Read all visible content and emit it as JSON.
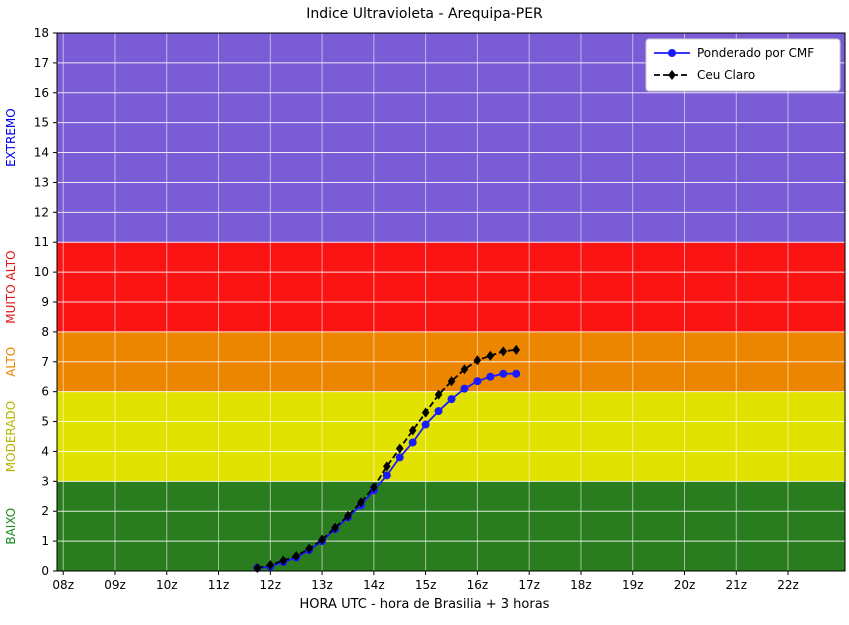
{
  "chart_data": {
    "type": "line",
    "title": "Indice Ultravioleta - Arequipa-PER",
    "xlabel": "HORA UTC - hora de Brasilia + 3 horas",
    "ylabel": "",
    "xlim": [
      7.88,
      23.1
    ],
    "ylim": [
      0,
      18
    ],
    "grid": true,
    "legend_position": "top-right",
    "x_ticks": [
      {
        "value": 8,
        "label": "08z"
      },
      {
        "value": 9,
        "label": "09z"
      },
      {
        "value": 10,
        "label": "10z"
      },
      {
        "value": 11,
        "label": "11z"
      },
      {
        "value": 12,
        "label": "12z"
      },
      {
        "value": 13,
        "label": "13z"
      },
      {
        "value": 14,
        "label": "14z"
      },
      {
        "value": 15,
        "label": "15z"
      },
      {
        "value": 16,
        "label": "16z"
      },
      {
        "value": 17,
        "label": "17z"
      },
      {
        "value": 18,
        "label": "18z"
      },
      {
        "value": 19,
        "label": "19z"
      },
      {
        "value": 20,
        "label": "20z"
      },
      {
        "value": 21,
        "label": "21z"
      },
      {
        "value": 22,
        "label": "22z"
      }
    ],
    "y_ticks": [
      0,
      1,
      2,
      3,
      4,
      5,
      6,
      7,
      8,
      9,
      10,
      11,
      12,
      13,
      14,
      15,
      16,
      17,
      18
    ],
    "bands": [
      {
        "label": "BAIXO",
        "from": 0,
        "to": 3,
        "color": "#2a7d1e",
        "label_color": "#1d8a1d"
      },
      {
        "label": "MODERADO",
        "from": 3,
        "to": 6,
        "color": "#e2e200",
        "label_color": "#b5b500"
      },
      {
        "label": "ALTO",
        "from": 6,
        "to": 8,
        "color": "#ec8500",
        "label_color": "#ec8500"
      },
      {
        "label": "MUITO ALTO",
        "from": 8,
        "to": 11,
        "color": "#fb1414",
        "label_color": "#e31616"
      },
      {
        "label": "EXTREMO",
        "from": 11,
        "to": 18,
        "color": "#7a5cd6",
        "label_color": "#0000ee"
      }
    ],
    "series": [
      {
        "name": "Ponderado por CMF",
        "color": "#1a1aff",
        "marker": "circle",
        "dash": "solid",
        "x": [
          11.75,
          12.0,
          12.25,
          12.5,
          12.75,
          13.0,
          13.25,
          13.5,
          13.75,
          14.0,
          14.25,
          14.5,
          14.75,
          15.0,
          15.25,
          15.5,
          15.75,
          16.0,
          16.25,
          16.5,
          16.75
        ],
        "y": [
          0.1,
          0.15,
          0.3,
          0.45,
          0.7,
          1.0,
          1.4,
          1.8,
          2.2,
          2.7,
          3.2,
          3.8,
          4.3,
          4.9,
          5.35,
          5.75,
          6.1,
          6.35,
          6.5,
          6.6,
          6.6
        ]
      },
      {
        "name": "Ceu Claro",
        "color": "#000000",
        "marker": "diamond",
        "dash": "dashed",
        "x": [
          11.75,
          12.0,
          12.25,
          12.5,
          12.75,
          13.0,
          13.25,
          13.5,
          13.75,
          14.0,
          14.25,
          14.5,
          14.75,
          15.0,
          15.25,
          15.5,
          15.75,
          16.0,
          16.25,
          16.5,
          16.75
        ],
        "y": [
          0.1,
          0.2,
          0.35,
          0.5,
          0.75,
          1.05,
          1.45,
          1.85,
          2.3,
          2.8,
          3.5,
          4.1,
          4.7,
          5.3,
          5.9,
          6.35,
          6.75,
          7.05,
          7.2,
          7.35,
          7.4
        ]
      }
    ]
  }
}
